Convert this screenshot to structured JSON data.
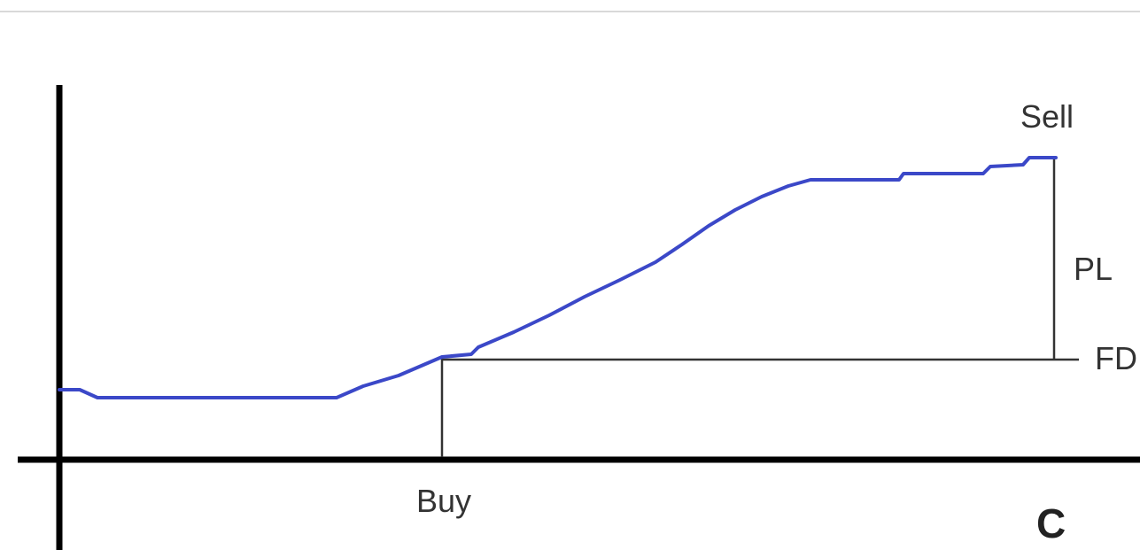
{
  "diagram": {
    "labels": {
      "buy": "Buy",
      "sell": "Sell",
      "pl": "PL",
      "fd": "FD",
      "panel": "C"
    },
    "colors": {
      "curve": "#3b48c8",
      "axes": "#000000",
      "guides": "#333333",
      "top_rule": "#d9d9d9",
      "background": "#ffffff"
    }
  }
}
